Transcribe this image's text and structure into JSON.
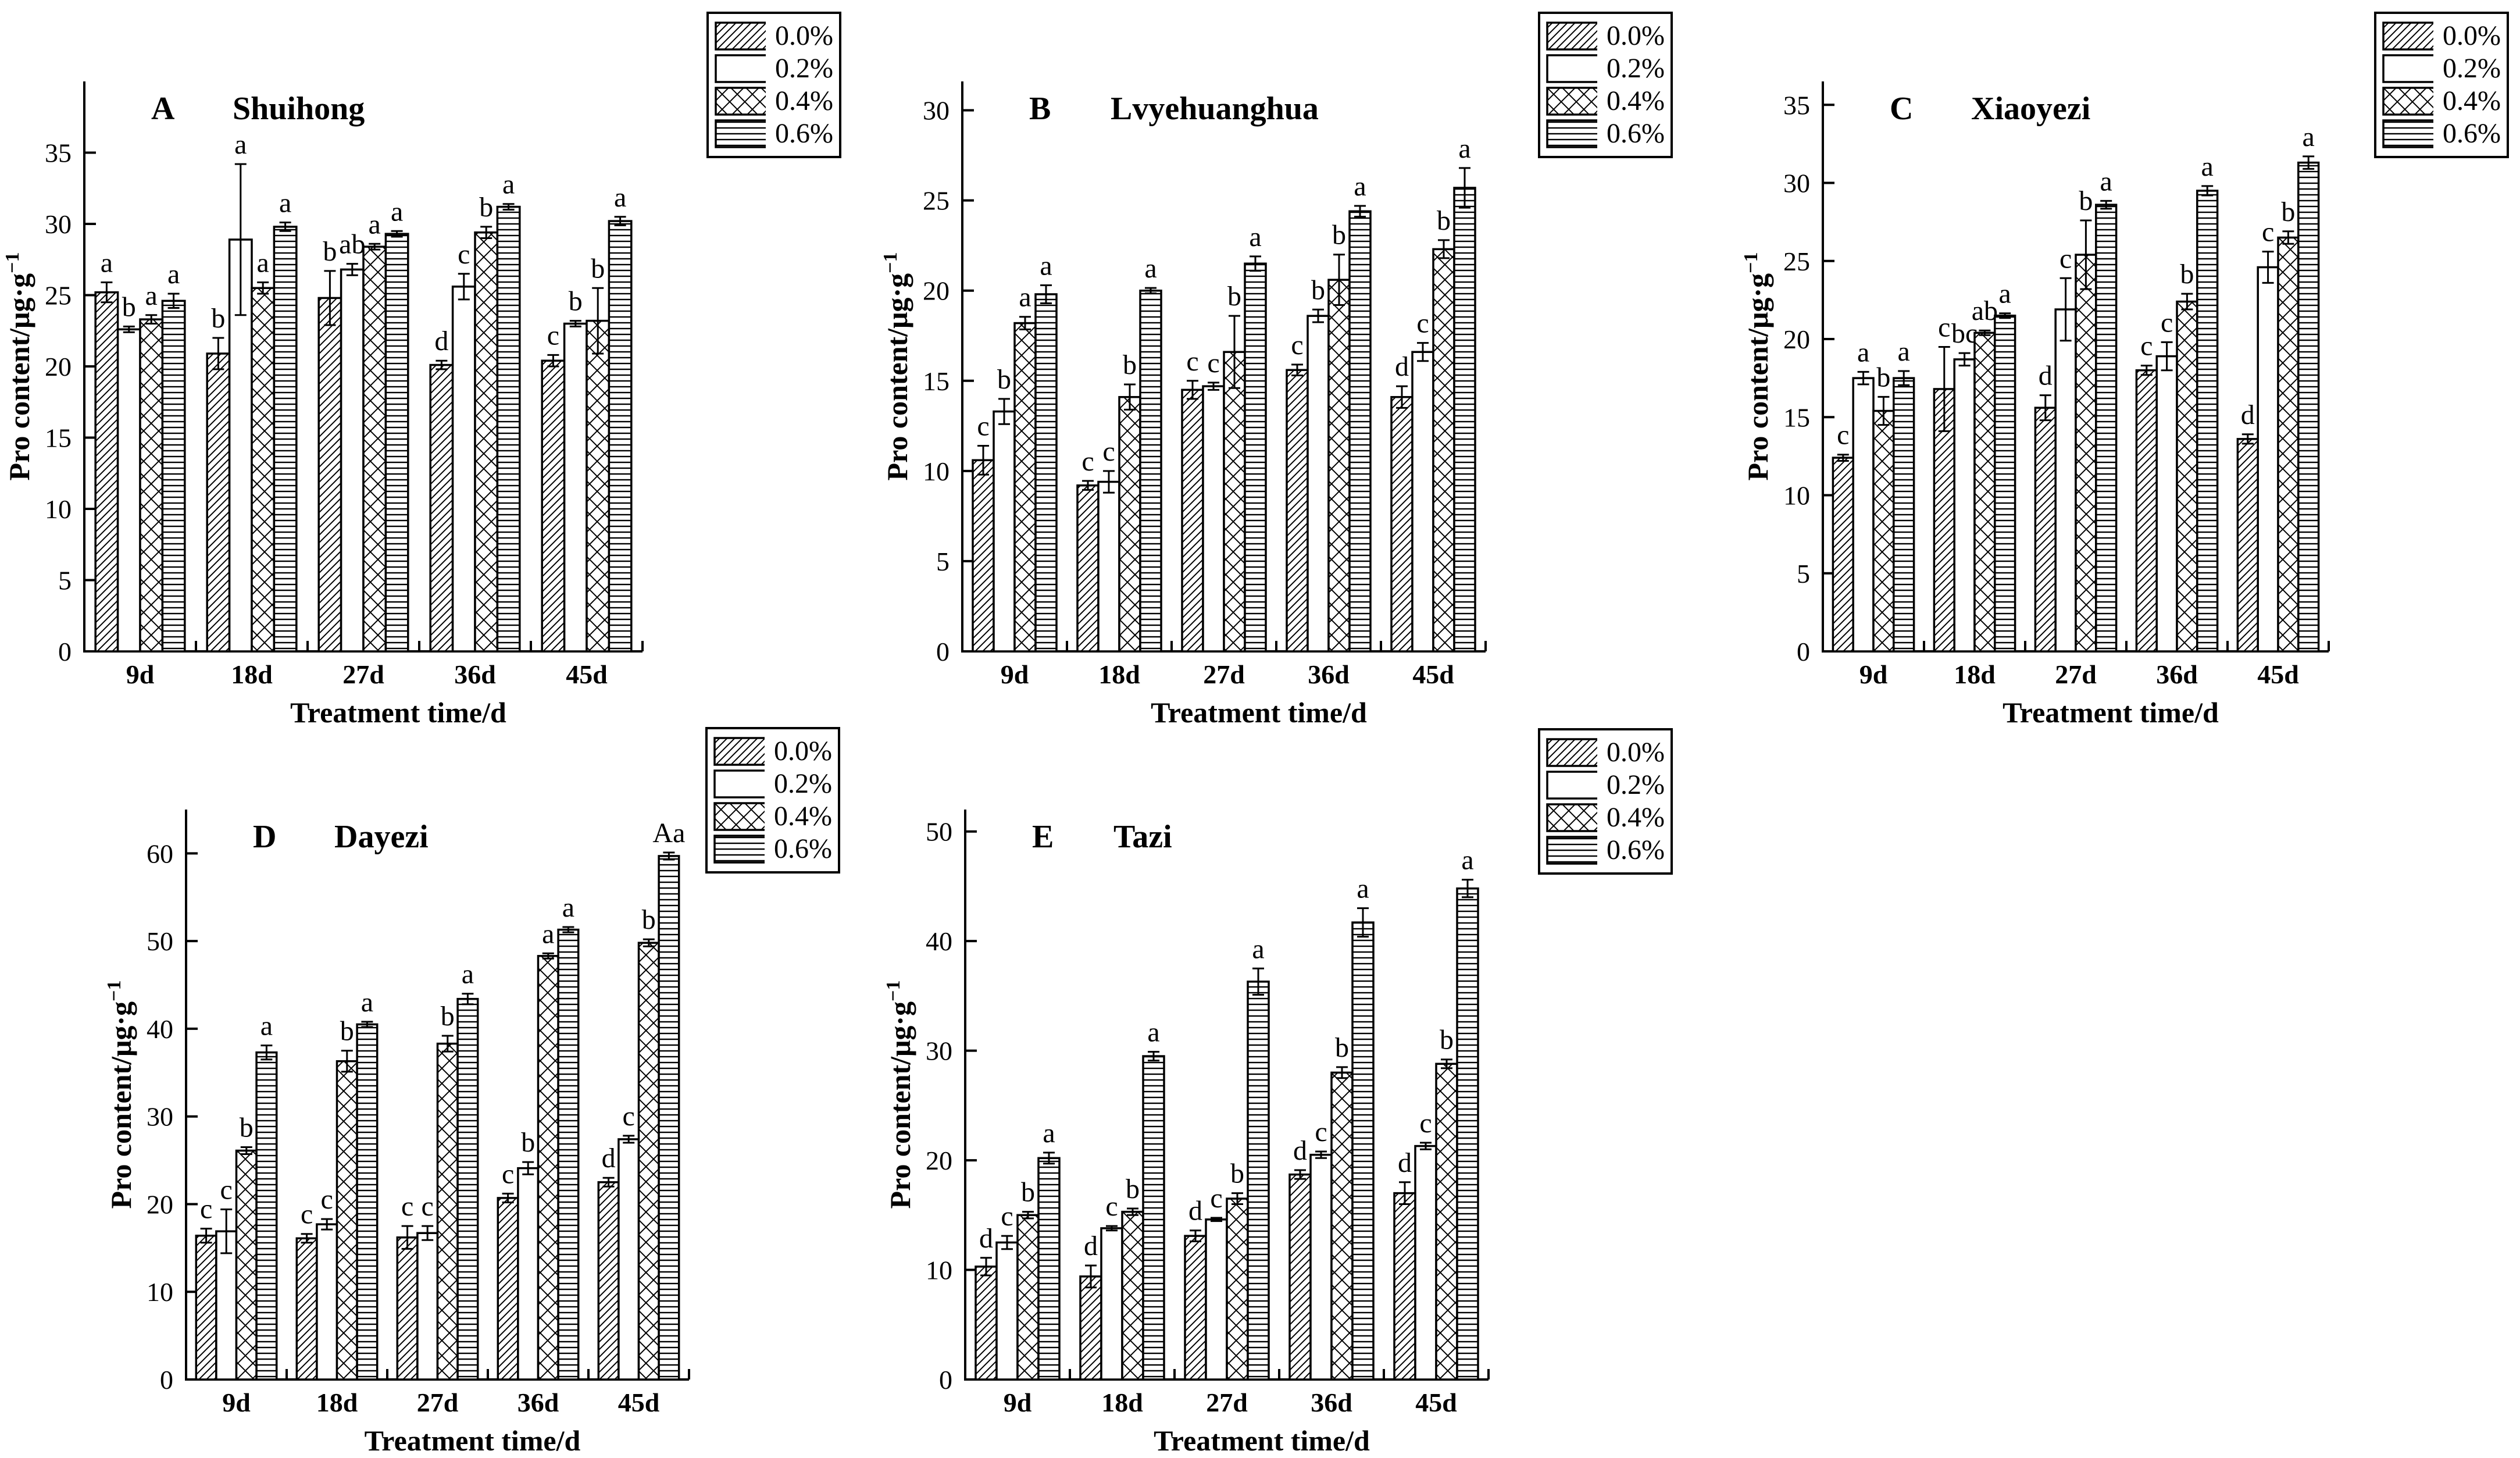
{
  "figure": {
    "ylabel_base": "Pro content/μg·g",
    "ylabel_sup": "−1",
    "xlabel": "Treatment time/d",
    "ink_color": "#000000",
    "background_color": "#ffffff"
  },
  "legend": {
    "entries": [
      {
        "label": "0.0%",
        "pattern": "diagonal"
      },
      {
        "label": "0.2%",
        "pattern": "plain"
      },
      {
        "label": "0.4%",
        "pattern": "crosshatch"
      },
      {
        "label": "0.6%",
        "pattern": "horizontal"
      }
    ]
  },
  "chart_data": [
    {
      "panel": "A",
      "title": "Shuihong",
      "type": "bar",
      "xlabel": "Treatment time/d",
      "ylabel": "Pro content/μg·g−1",
      "ylim": [
        0,
        40
      ],
      "yticks": [
        0,
        5,
        10,
        15,
        20,
        25,
        30,
        35
      ],
      "grid": false,
      "legend_position": "outside-top-right",
      "categories": [
        "9d",
        "18d",
        "27d",
        "36d",
        "45d"
      ],
      "series": [
        {
          "name": "0.0%",
          "pattern": "diagonal",
          "values": [
            25.2,
            20.9,
            24.8,
            20.1,
            20.4
          ],
          "errors": [
            0.7,
            1.1,
            1.9,
            0.3,
            0.4
          ],
          "letters": [
            "a",
            "b",
            "b",
            "d",
            "c"
          ]
        },
        {
          "name": "0.2%",
          "pattern": "plain",
          "values": [
            22.6,
            28.9,
            26.8,
            25.6,
            23.0
          ],
          "errors": [
            0.2,
            5.3,
            0.4,
            0.9,
            0.2
          ],
          "letters": [
            "b",
            "a",
            "ab",
            "c",
            "b"
          ]
        },
        {
          "name": "0.4%",
          "pattern": "crosshatch",
          "values": [
            23.3,
            25.5,
            28.4,
            29.4,
            23.2
          ],
          "errors": [
            0.3,
            0.4,
            0.2,
            0.4,
            2.3
          ],
          "letters": [
            "a",
            "a",
            "a",
            "b",
            "b"
          ]
        },
        {
          "name": "0.6%",
          "pattern": "horizontal",
          "values": [
            24.6,
            29.8,
            29.3,
            31.2,
            30.2
          ],
          "errors": [
            0.5,
            0.3,
            0.2,
            0.2,
            0.3
          ],
          "letters": [
            "a",
            "a",
            "a",
            "a",
            "a"
          ]
        }
      ]
    },
    {
      "panel": "B",
      "title": "Lvyehuanghua",
      "type": "bar",
      "xlabel": "Treatment time/d",
      "ylabel": "Pro content/μg·g−1",
      "ylim": [
        0,
        31.6
      ],
      "yticks": [
        0,
        5,
        10,
        15,
        20,
        25,
        30
      ],
      "grid": false,
      "legend_position": "outside-top-right",
      "categories": [
        "9d",
        "18d",
        "27d",
        "36d",
        "45d"
      ],
      "series": [
        {
          "name": "0.0%",
          "pattern": "diagonal",
          "values": [
            10.6,
            9.2,
            14.5,
            15.6,
            14.1
          ],
          "errors": [
            0.8,
            0.25,
            0.5,
            0.3,
            0.6
          ],
          "letters": [
            "c",
            "c",
            "c",
            "c",
            "d"
          ]
        },
        {
          "name": "0.2%",
          "pattern": "plain",
          "values": [
            13.3,
            9.4,
            14.7,
            18.6,
            16.6
          ],
          "errors": [
            0.7,
            0.6,
            0.2,
            0.35,
            0.5
          ],
          "letters": [
            "b",
            "c",
            "c",
            "b",
            "c"
          ]
        },
        {
          "name": "0.4%",
          "pattern": "crosshatch",
          "values": [
            18.2,
            14.1,
            16.6,
            20.6,
            22.3
          ],
          "errors": [
            0.35,
            0.7,
            2.0,
            1.4,
            0.5
          ],
          "letters": [
            "a",
            "b",
            "b",
            "b",
            "b"
          ]
        },
        {
          "name": "0.6%",
          "pattern": "horizontal",
          "values": [
            19.8,
            20.0,
            21.5,
            24.4,
            25.7
          ],
          "errors": [
            0.5,
            0.15,
            0.4,
            0.3,
            1.1
          ],
          "letters": [
            "a",
            "a",
            "a",
            "a",
            "a"
          ]
        }
      ]
    },
    {
      "panel": "C",
      "title": "Xiaoyezi",
      "type": "bar",
      "xlabel": "Treatment time/d",
      "ylabel": "Pro content/μg·g−1",
      "ylim": [
        0,
        36.5
      ],
      "yticks": [
        0,
        5,
        10,
        15,
        20,
        25,
        30,
        35
      ],
      "grid": false,
      "legend_position": "outside-top-right",
      "categories": [
        "9d",
        "18d",
        "27d",
        "36d",
        "45d"
      ],
      "series": [
        {
          "name": "0.0%",
          "pattern": "diagonal",
          "values": [
            12.4,
            16.8,
            15.6,
            18.0,
            13.6
          ],
          "errors": [
            0.2,
            2.7,
            0.8,
            0.3,
            0.3
          ],
          "letters": [
            "c",
            "c",
            "d",
            "c",
            "d"
          ]
        },
        {
          "name": "0.2%",
          "pattern": "plain",
          "values": [
            17.5,
            18.7,
            21.9,
            18.9,
            24.6
          ],
          "errors": [
            0.4,
            0.4,
            2.0,
            0.9,
            1.0
          ],
          "letters": [
            "a",
            "bc",
            "c",
            "c",
            "c"
          ]
        },
        {
          "name": "0.4%",
          "pattern": "crosshatch",
          "values": [
            15.4,
            20.4,
            25.4,
            22.4,
            26.5
          ],
          "errors": [
            0.9,
            0.15,
            2.2,
            0.5,
            0.4
          ],
          "letters": [
            "b",
            "ab",
            "b",
            "b",
            "b"
          ]
        },
        {
          "name": "0.6%",
          "pattern": "horizontal",
          "values": [
            17.5,
            21.5,
            28.6,
            29.5,
            31.3
          ],
          "errors": [
            0.45,
            0.15,
            0.25,
            0.3,
            0.4
          ],
          "letters": [
            "a",
            "a",
            "a",
            "a",
            "a"
          ]
        }
      ]
    },
    {
      "panel": "D",
      "title": "Dayezi",
      "type": "bar",
      "xlabel": "Treatment time/d",
      "ylabel": "Pro content/μg·g−1",
      "ylim": [
        0,
        65
      ],
      "yticks": [
        0,
        10,
        20,
        30,
        40,
        50,
        60
      ],
      "grid": false,
      "legend_position": "outside-top-right",
      "categories": [
        "9d",
        "18d",
        "27d",
        "36d",
        "45d"
      ],
      "series": [
        {
          "name": "0.0%",
          "pattern": "diagonal",
          "values": [
            16.4,
            16.1,
            16.2,
            20.7,
            22.5
          ],
          "errors": [
            0.8,
            0.5,
            1.3,
            0.5,
            0.5
          ],
          "letters": [
            "c",
            "c",
            "c",
            "c",
            "d"
          ]
        },
        {
          "name": "0.2%",
          "pattern": "plain",
          "values": [
            16.9,
            17.7,
            16.7,
            24.1,
            27.4
          ],
          "errors": [
            2.5,
            0.6,
            0.8,
            0.7,
            0.4
          ],
          "letters": [
            "c",
            "c",
            "c",
            "b",
            "c"
          ]
        },
        {
          "name": "0.4%",
          "pattern": "crosshatch",
          "values": [
            26.1,
            36.3,
            38.3,
            48.3,
            49.8
          ],
          "errors": [
            0.4,
            1.2,
            0.9,
            0.3,
            0.4
          ],
          "letters": [
            "b",
            "b",
            "b",
            "a",
            "b"
          ]
        },
        {
          "name": "0.6%",
          "pattern": "horizontal",
          "values": [
            37.3,
            40.5,
            43.4,
            51.3,
            59.7
          ],
          "errors": [
            0.8,
            0.3,
            0.6,
            0.3,
            0.4
          ],
          "letters": [
            "a",
            "a",
            "a",
            "a",
            "Aa"
          ]
        }
      ]
    },
    {
      "panel": "E",
      "title": "Tazi",
      "type": "bar",
      "xlabel": "Treatment time/d",
      "ylabel": "Pro content/μg·g−1",
      "ylim": [
        0,
        52
      ],
      "yticks": [
        0,
        10,
        20,
        30,
        40,
        50
      ],
      "grid": false,
      "legend_position": "outside-top-right",
      "categories": [
        "9d",
        "18d",
        "27d",
        "36d",
        "45d"
      ],
      "series": [
        {
          "name": "0.0%",
          "pattern": "diagonal",
          "values": [
            10.3,
            9.4,
            13.1,
            18.7,
            17.0
          ],
          "errors": [
            0.8,
            1.0,
            0.5,
            0.4,
            1.0
          ],
          "letters": [
            "d",
            "d",
            "d",
            "d",
            "d"
          ]
        },
        {
          "name": "0.2%",
          "pattern": "plain",
          "values": [
            12.5,
            13.8,
            14.6,
            20.5,
            21.3
          ],
          "errors": [
            0.6,
            0.2,
            0.15,
            0.3,
            0.3
          ],
          "letters": [
            "c",
            "c",
            "c",
            "c",
            "c"
          ]
        },
        {
          "name": "0.4%",
          "pattern": "crosshatch",
          "values": [
            15.0,
            15.3,
            16.5,
            28.0,
            28.8
          ],
          "errors": [
            0.3,
            0.3,
            0.5,
            0.5,
            0.4
          ],
          "letters": [
            "b",
            "b",
            "b",
            "b",
            "b"
          ]
        },
        {
          "name": "0.6%",
          "pattern": "horizontal",
          "values": [
            20.2,
            29.5,
            36.3,
            41.7,
            44.8
          ],
          "errors": [
            0.5,
            0.4,
            1.2,
            1.3,
            0.8
          ],
          "letters": [
            "a",
            "a",
            "a",
            "a",
            "a"
          ]
        }
      ]
    }
  ]
}
